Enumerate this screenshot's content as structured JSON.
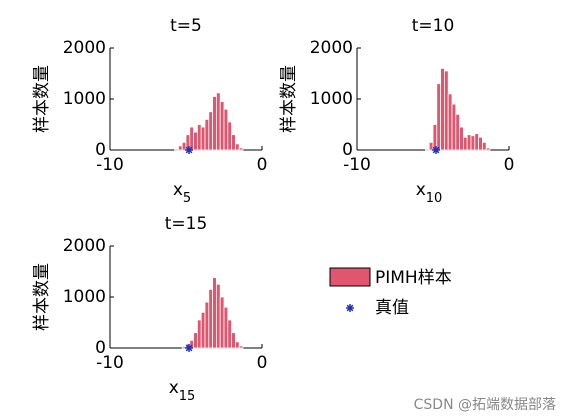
{
  "chart_data": [
    {
      "type": "histogram",
      "title": "t=5",
      "xlabel": "x",
      "xlabel_subscript": "5",
      "ylabel": "样本数量",
      "xlim": [
        -10,
        0
      ],
      "xticks": [
        -10,
        0
      ],
      "ylim": [
        0,
        2000
      ],
      "yticks": [
        0,
        1000,
        2000
      ],
      "series": [
        {
          "name": "PIMH样本",
          "color": "#e0566e",
          "bins": [
            -5.75,
            -5.5,
            -5.25,
            -5,
            -4.75,
            -4.5,
            -4.25,
            -4,
            -3.75,
            -3.5,
            -3.25,
            -3,
            -2.75,
            -2.5,
            -2.25,
            -2,
            -1.75,
            -1.5,
            -1.25
          ],
          "values": [
            20,
            80,
            150,
            300,
            450,
            350,
            500,
            450,
            600,
            750,
            1050,
            1120,
            950,
            800,
            550,
            300,
            120,
            40
          ]
        }
      ],
      "true_value": {
        "name": "真值",
        "x": -4.8,
        "y": 0,
        "color": "#2233bb"
      }
    },
    {
      "type": "histogram",
      "title": "t=10",
      "xlabel": "x",
      "xlabel_subscript": "10",
      "ylabel": "样本数量",
      "xlim": [
        -10,
        0
      ],
      "xticks": [
        -10,
        0
      ],
      "ylim": [
        0,
        2000
      ],
      "yticks": [
        0,
        1000,
        2000
      ],
      "series": [
        {
          "color": "#e0566e",
          "bins": [
            -5.5,
            -5.25,
            -5,
            -4.75,
            -4.5,
            -4.25,
            -4,
            -3.75,
            -3.5,
            -3.25,
            -3,
            -2.75,
            -2.5,
            -2.25,
            -2,
            -1.75,
            -1.5,
            -1.25
          ],
          "values": [
            20,
            150,
            500,
            1300,
            1600,
            1550,
            1100,
            900,
            700,
            450,
            250,
            300,
            280,
            320,
            250,
            150,
            40
          ]
        }
      ],
      "true_value": {
        "x": -4.8,
        "y": 0,
        "color": "#2233bb"
      }
    },
    {
      "type": "histogram",
      "title": "t=15",
      "xlabel": "x",
      "xlabel_subscript": "15",
      "ylabel": "样本数量",
      "xlim": [
        -10,
        0
      ],
      "xticks": [
        -10,
        0
      ],
      "ylim": [
        0,
        2000
      ],
      "yticks": [
        0,
        1000,
        2000
      ],
      "series": [
        {
          "color": "#e0566e",
          "bins": [
            -5.25,
            -5,
            -4.75,
            -4.5,
            -4.25,
            -4,
            -3.75,
            -3.5,
            -3.25,
            -3,
            -2.75,
            -2.5,
            -2.25,
            -2,
            -1.75,
            -1.5,
            -1.25
          ],
          "values": [
            30,
            80,
            150,
            300,
            550,
            700,
            900,
            1150,
            1380,
            1250,
            1000,
            800,
            550,
            300,
            120,
            40
          ]
        }
      ],
      "true_value": {
        "x": -4.8,
        "y": 0,
        "color": "#2233bb"
      }
    }
  ],
  "watermark": "CSDN @拓端数据部落"
}
